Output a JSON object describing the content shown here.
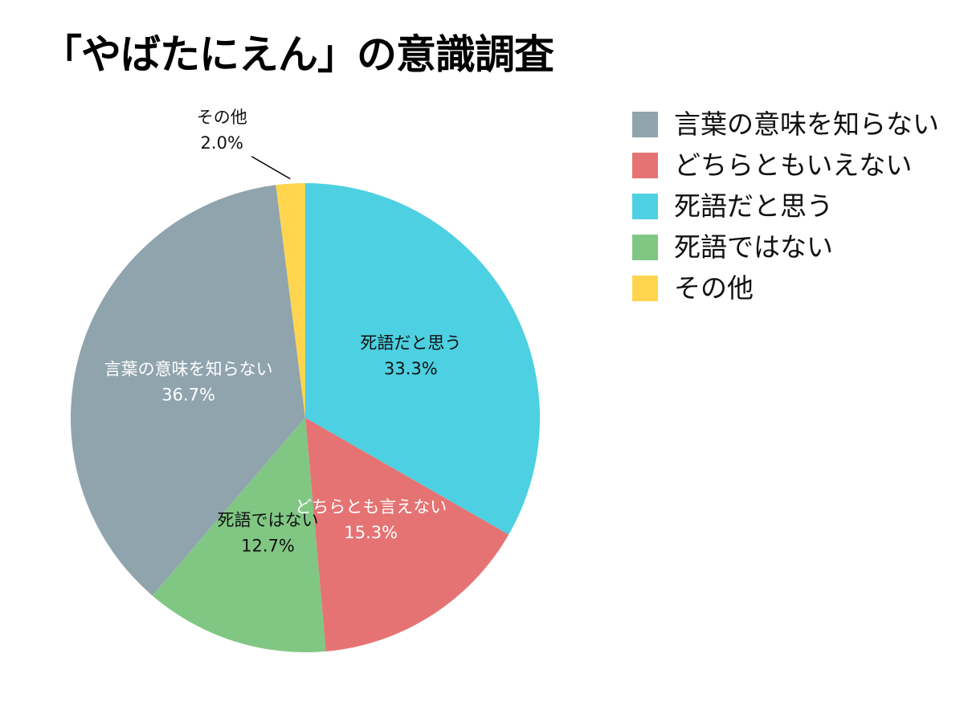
{
  "chart_data": {
    "type": "pie",
    "title": "「やばたにえん」の意識調査",
    "slices": [
      {
        "legend": "死語だと思う",
        "label": "死語だと思う",
        "value": 33.3,
        "value_label": "33.3%",
        "color": "#4dd0e1",
        "text_color": "#111111"
      },
      {
        "legend": "どちらともいえない",
        "label": "どちらとも言えない",
        "value": 15.3,
        "value_label": "15.3%",
        "color": "#e57373",
        "text_color": "#ffffff"
      },
      {
        "legend": "死語ではない",
        "label": "死語ではない",
        "value": 12.7,
        "value_label": "12.7%",
        "color": "#81c784",
        "text_color": "#111111"
      },
      {
        "legend": "言葉の意味を知らない",
        "label": "言葉の意味を知らない",
        "value": 36.7,
        "value_label": "36.7%",
        "color": "#90a4ae",
        "text_color": "#ffffff"
      },
      {
        "legend": "その他",
        "label": "その他",
        "value": 2.0,
        "value_label": "2.0%",
        "color": "#ffd54f",
        "text_color": "#111111"
      }
    ],
    "legend_order": [
      "言葉の意味を知らない",
      "どちらともいえない",
      "死語だと思う",
      "死語ではない",
      "その他"
    ],
    "legend_position": "right"
  }
}
